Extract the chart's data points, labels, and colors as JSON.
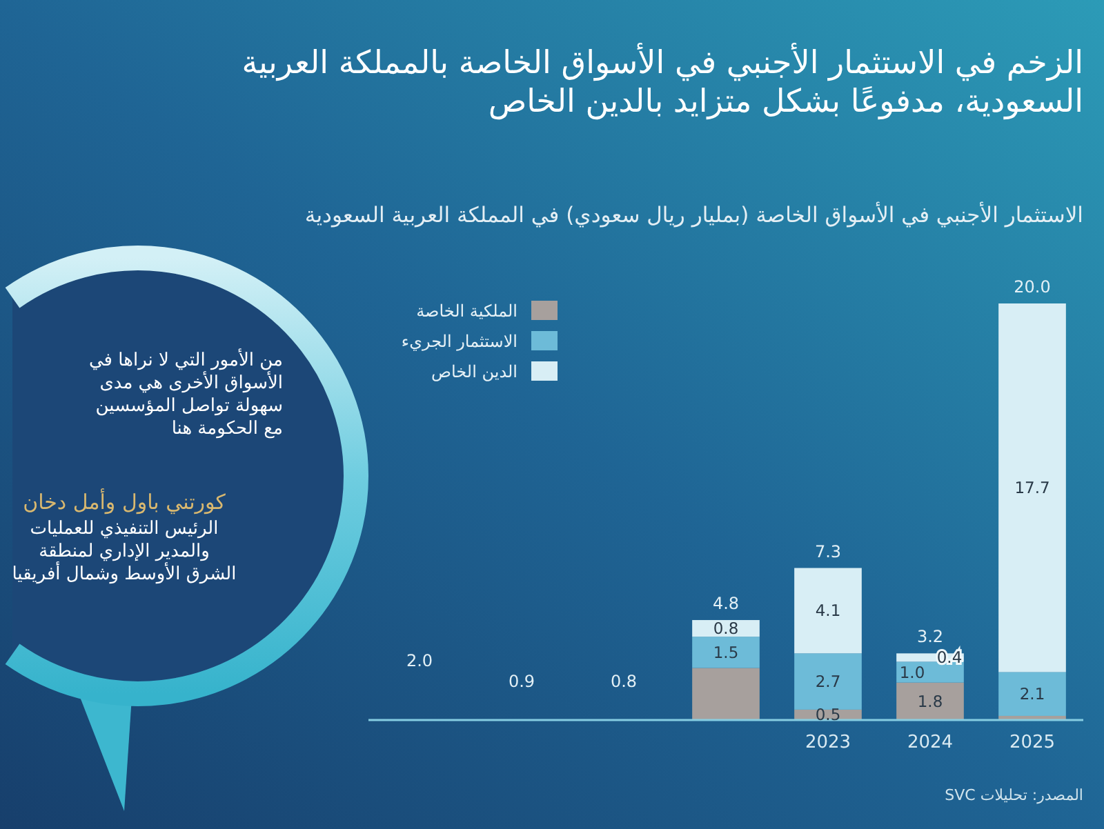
{
  "chart_data": {
    "type": "bar",
    "title": "الزخم في الاستثمار الأجنبي في الأسواق الخاصة بالمملكة العربية\nالسعودية، مدفوعًا بشكل متزايد بالدين الخاص",
    "subtitle": "الاستثمار الأجنبي في الأسواق الخاصة (بمليار ريال سعودي) في المملكة العربية السعودية",
    "categories": [
      null,
      null,
      null,
      null,
      "2023",
      "2024",
      "2025"
    ],
    "stacked": true,
    "series": [
      {
        "name": "الملكية الخاصة",
        "color": "#a7a09d",
        "values": [
          null,
          null,
          null,
          2.5,
          0.5,
          1.8,
          0.2
        ],
        "value_labels": [
          null,
          null,
          null,
          null,
          "0.5",
          "1.8",
          null
        ]
      },
      {
        "name": "الاستثمار الجريء",
        "color": "#6dbbd8",
        "values": [
          null,
          null,
          null,
          1.5,
          2.7,
          1.0,
          2.1
        ],
        "value_labels": [
          null,
          null,
          null,
          "1.5",
          "2.7",
          "1.0",
          "2.1"
        ]
      },
      {
        "name": "الدين الخاص",
        "color": "#d8eef5",
        "values": [
          null,
          null,
          null,
          0.8,
          4.1,
          0.4,
          17.7
        ],
        "value_labels": [
          null,
          null,
          null,
          "0.8",
          "4.1",
          "0.4",
          "17.7"
        ]
      }
    ],
    "totals": [
      null,
      null,
      null,
      "4.8",
      "7.3",
      "3.2",
      "20.0"
    ],
    "legend": "top left",
    "annotations": [
      "من الأمور التي لا نراها في\nالأسواق الأخرى هي مدى\nسهولة تواصل المؤسسين\nمع الحكومة هنا",
      "كورتني باول وأمل دخان",
      "الرئيس التنفيذي للعمليات\nوالمدير الإداري لمنطقة\nالشرق الأوسط وشمال أفريقيا",
      "المصدر: تحليلات SVC",
      "2.0",
      "0.9",
      "0.8"
    ]
  }
}
